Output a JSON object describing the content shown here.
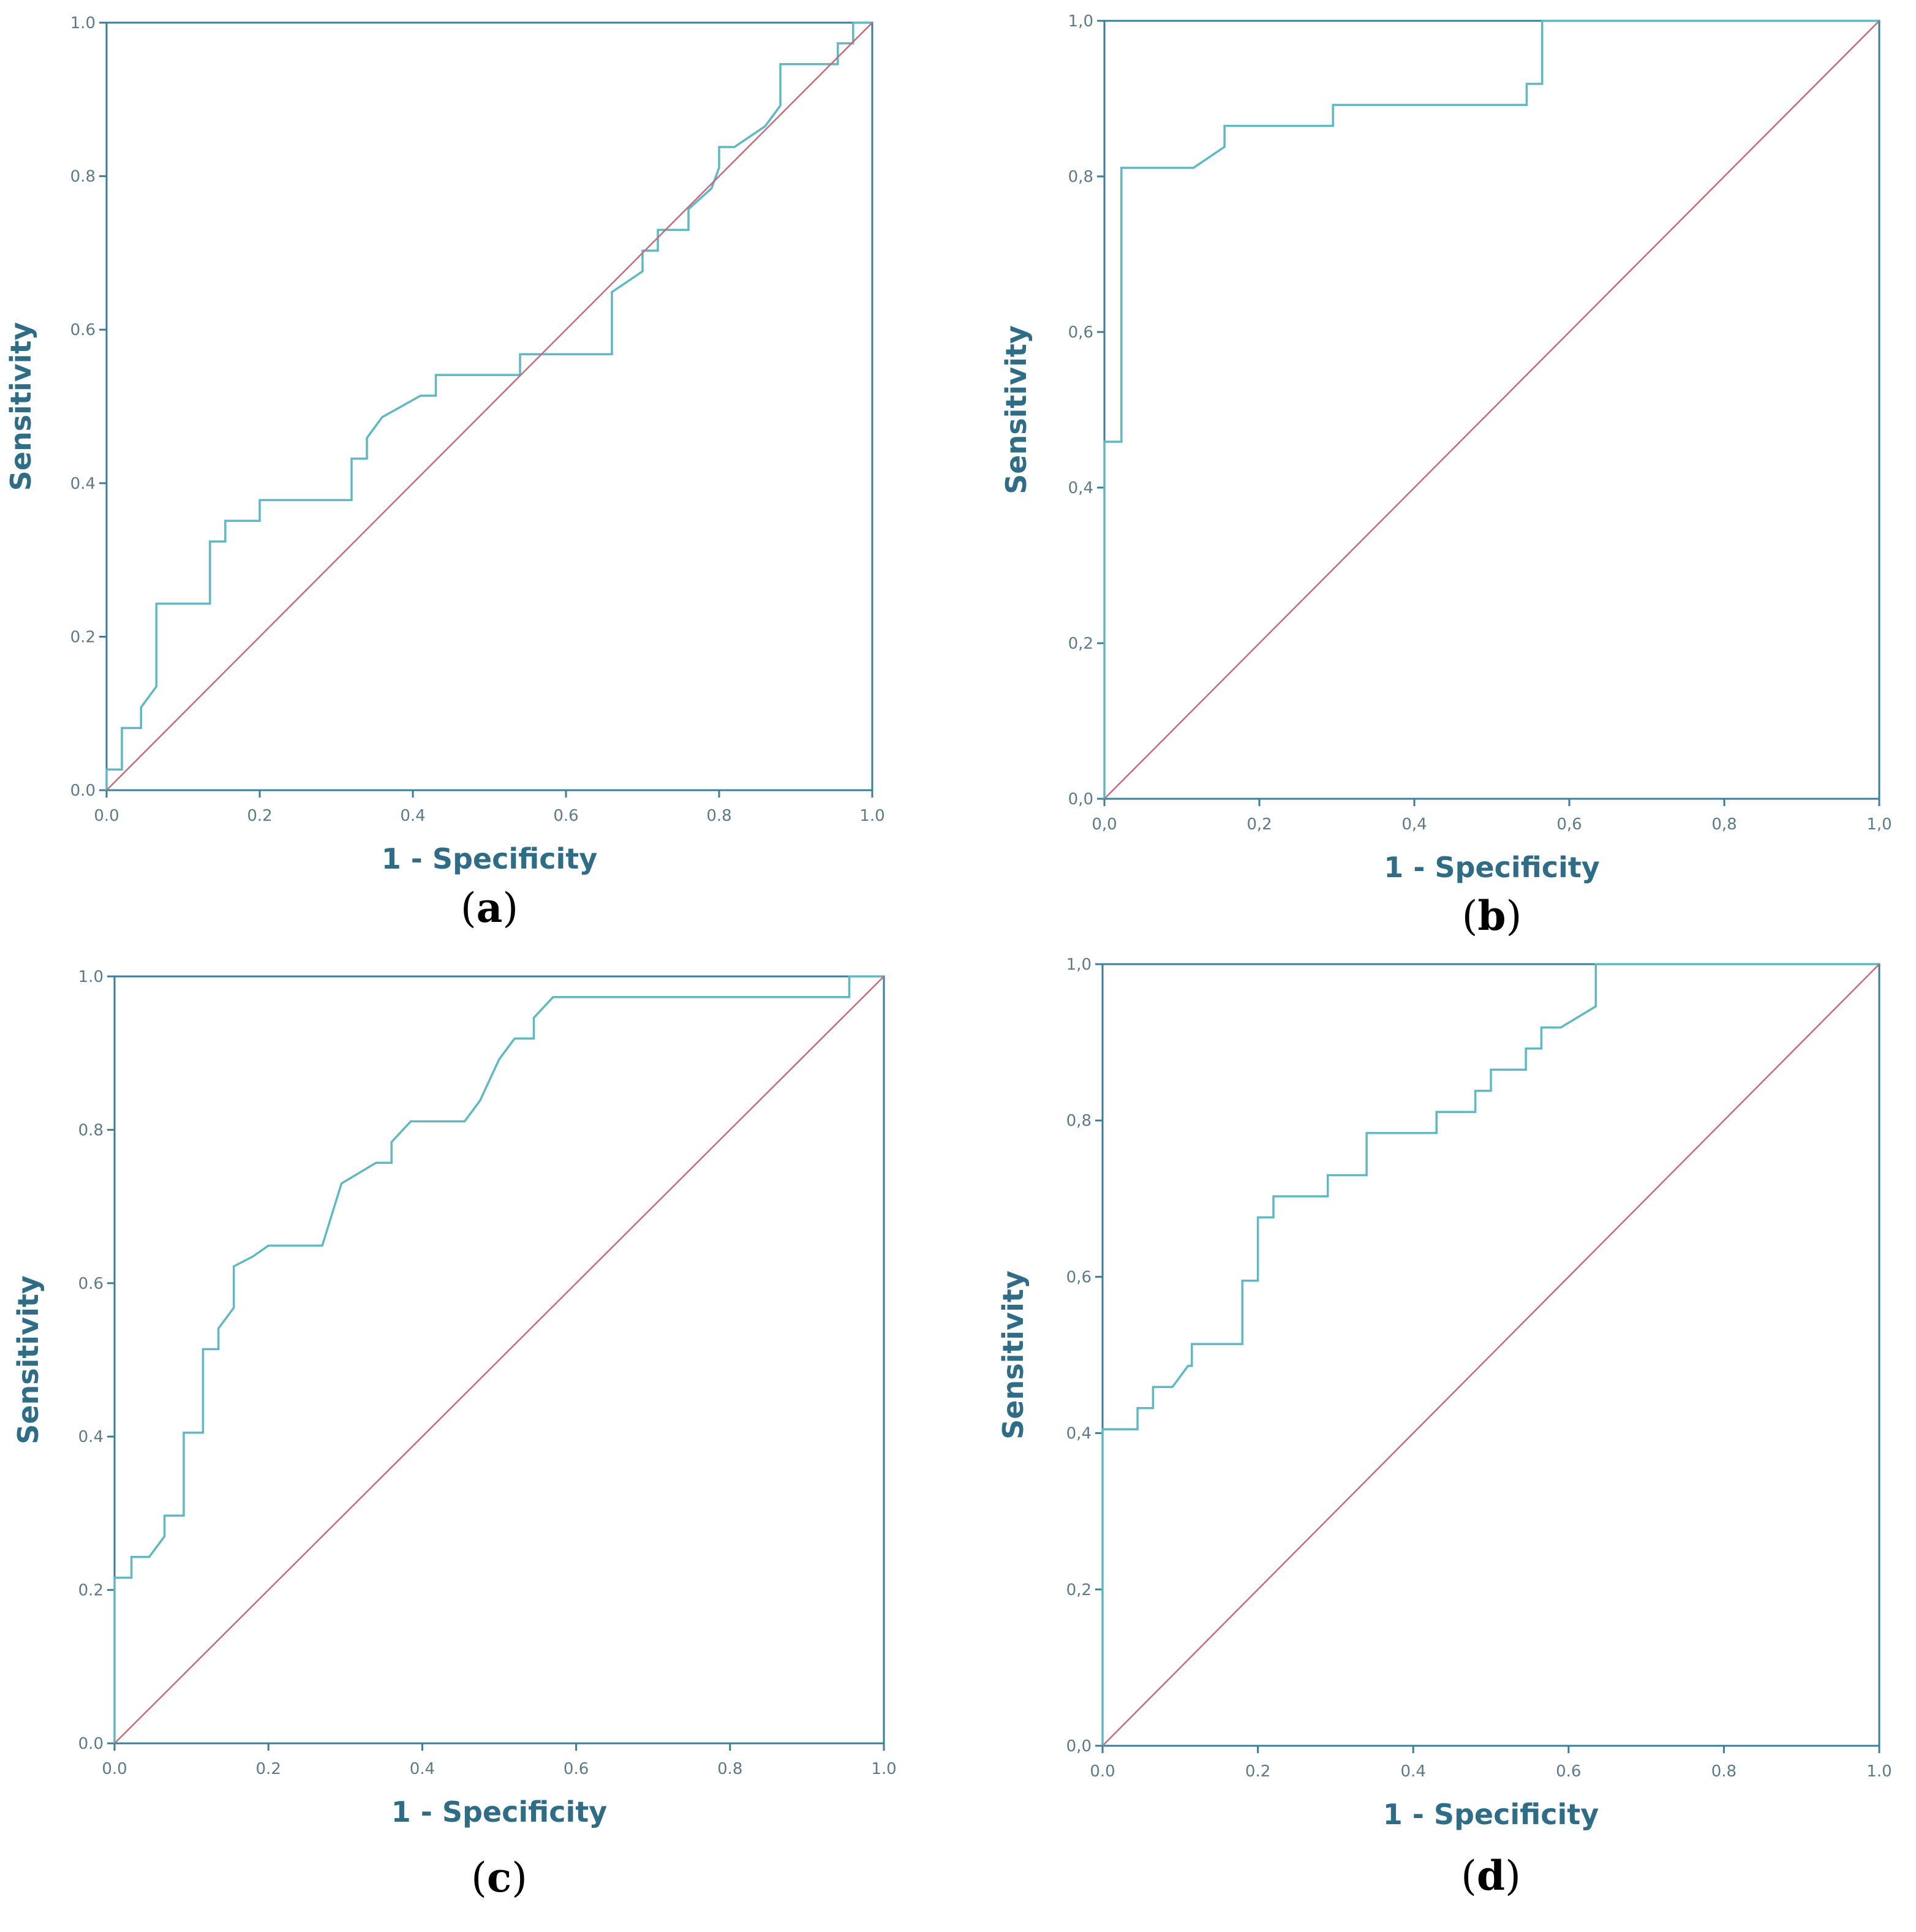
{
  "colors": {
    "axis": "#3a7f98",
    "axis_text": "#2f6d86",
    "tick_text": "#5e7a86",
    "roc": "#5fb8c2",
    "reference": "#c46b7c"
  },
  "chart_data": [
    {
      "type": "line",
      "panel": "a",
      "label_open": "(",
      "label_letter": "a",
      "label_close": ")",
      "xlabel": "1 - Specificity",
      "ylabel": "Sensitivity",
      "xlim": [
        0,
        1
      ],
      "ylim": [
        0,
        1
      ],
      "xticks": [
        "0.0",
        "0.2",
        "0.4",
        "0.6",
        "0.8",
        "1.0"
      ],
      "yticks": [
        "0.0",
        "0.2",
        "0.4",
        "0.6",
        "0.8",
        "1.0"
      ],
      "series": [
        {
          "name": "ROC curve",
          "x": [
            0,
            0,
            0.02,
            0.02,
            0.045,
            0.045,
            0.065,
            0.065,
            0.135,
            0.135,
            0.155,
            0.155,
            0.2,
            0.2,
            0.32,
            0.32,
            0.34,
            0.34,
            0.36,
            0.36,
            0.41,
            0.43,
            0.43,
            0.54,
            0.54,
            0.66,
            0.66,
            0.7,
            0.7,
            0.72,
            0.72,
            0.76,
            0.76,
            0.79,
            0.79,
            0.8,
            0.8,
            0.82,
            0.86,
            0.88,
            0.88,
            0.95,
            0.955,
            0.955,
            0.975,
            0.975,
            1
          ],
          "y": [
            0,
            0.027,
            0.027,
            0.081,
            0.081,
            0.108,
            0.135,
            0.243,
            0.243,
            0.324,
            0.324,
            0.351,
            0.351,
            0.378,
            0.378,
            0.432,
            0.432,
            0.459,
            0.486,
            0.486,
            0.514,
            0.514,
            0.541,
            0.541,
            0.568,
            0.568,
            0.649,
            0.676,
            0.703,
            0.703,
            0.73,
            0.73,
            0.757,
            0.784,
            0.784,
            0.811,
            0.838,
            0.838,
            0.865,
            0.892,
            0.946,
            0.946,
            0.946,
            0.973,
            0.973,
            1,
            1
          ]
        },
        {
          "name": "Reference line",
          "x": [
            0,
            1
          ],
          "y": [
            0,
            1
          ]
        }
      ]
    },
    {
      "type": "line",
      "panel": "b",
      "label_open": "(",
      "label_letter": "b",
      "label_close": ")",
      "xlabel": "1 - Specificity",
      "ylabel": "Sensitivity",
      "xlim": [
        0,
        1
      ],
      "ylim": [
        0,
        1
      ],
      "xticks": [
        "0,0",
        "0,2",
        "0,4",
        "0,6",
        "0,8",
        "1,0"
      ],
      "yticks": [
        "0,0",
        "0,2",
        "0,4",
        "0,6",
        "0,8",
        "1,0"
      ],
      "series": [
        {
          "name": "ROC curve",
          "x": [
            0,
            0,
            0.022,
            0.022,
            0.115,
            0.155,
            0.155,
            0.295,
            0.295,
            0.545,
            0.545,
            0.565,
            0.565,
            1
          ],
          "y": [
            0,
            0.459,
            0.459,
            0.811,
            0.811,
            0.838,
            0.865,
            0.865,
            0.892,
            0.892,
            0.919,
            0.919,
            1,
            1
          ]
        },
        {
          "name": "Reference line",
          "x": [
            0,
            1
          ],
          "y": [
            0,
            1
          ]
        }
      ]
    },
    {
      "type": "line",
      "panel": "c",
      "label_open": "(",
      "label_letter": "c",
      "label_close": ")",
      "xlabel": "1 - Specificity",
      "ylabel": "Sensitivity",
      "xlim": [
        0,
        1
      ],
      "ylim": [
        0,
        1
      ],
      "xticks": [
        "0.0",
        "0.2",
        "0.4",
        "0.6",
        "0.8",
        "1.0"
      ],
      "yticks": [
        "0.0",
        "0.2",
        "0.4",
        "0.6",
        "0.8",
        "1.0"
      ],
      "series": [
        {
          "name": "ROC curve",
          "x": [
            0,
            0,
            0.022,
            0.022,
            0.045,
            0.065,
            0.065,
            0.09,
            0.09,
            0.115,
            0.115,
            0.135,
            0.135,
            0.155,
            0.155,
            0.18,
            0.2,
            0.27,
            0.295,
            0.34,
            0.36,
            0.36,
            0.385,
            0.455,
            0.475,
            0.5,
            0.52,
            0.545,
            0.545,
            0.57,
            0.6,
            0.955,
            0.955,
            1
          ],
          "y": [
            0,
            0.216,
            0.216,
            0.243,
            0.243,
            0.27,
            0.297,
            0.297,
            0.405,
            0.405,
            0.514,
            0.514,
            0.541,
            0.568,
            0.622,
            0.635,
            0.649,
            0.649,
            0.73,
            0.757,
            0.757,
            0.784,
            0.811,
            0.811,
            0.838,
            0.892,
            0.919,
            0.919,
            0.946,
            0.973,
            0.973,
            0.973,
            1,
            1
          ]
        },
        {
          "name": "Reference line",
          "x": [
            0,
            1
          ],
          "y": [
            0,
            1
          ]
        }
      ]
    },
    {
      "type": "line",
      "panel": "d",
      "label_open": "(",
      "label_letter": "d",
      "label_close": ")",
      "xlabel": "1 - Specificity",
      "ylabel": "Sensitivity",
      "xlim": [
        0,
        1
      ],
      "ylim": [
        0,
        1
      ],
      "xticks": [
        "0.0",
        "0.2",
        "0.4",
        "0.6",
        "0.8",
        "1.0"
      ],
      "yticks": [
        "0,0",
        "0,2",
        "0,4",
        "0,6",
        "0,8",
        "1,0"
      ],
      "series": [
        {
          "name": "ROC curve",
          "x": [
            0,
            0,
            0.045,
            0.045,
            0.065,
            0.065,
            0.09,
            0.09,
            0.11,
            0.115,
            0.115,
            0.18,
            0.18,
            0.2,
            0.2,
            0.22,
            0.22,
            0.25,
            0.29,
            0.29,
            0.34,
            0.34,
            0.43,
            0.43,
            0.48,
            0.48,
            0.5,
            0.5,
            0.545,
            0.545,
            0.565,
            0.565,
            0.59,
            0.635,
            0.635,
            1
          ],
          "y": [
            0,
            0.405,
            0.405,
            0.432,
            0.432,
            0.459,
            0.459,
            0.459,
            0.486,
            0.486,
            0.514,
            0.514,
            0.595,
            0.595,
            0.676,
            0.676,
            0.703,
            0.703,
            0.703,
            0.73,
            0.73,
            0.784,
            0.784,
            0.811,
            0.811,
            0.838,
            0.838,
            0.865,
            0.865,
            0.892,
            0.892,
            0.919,
            0.919,
            0.946,
            1,
            1
          ]
        },
        {
          "name": "Reference line",
          "x": [
            0,
            1
          ],
          "y": [
            0,
            1
          ]
        }
      ]
    }
  ]
}
